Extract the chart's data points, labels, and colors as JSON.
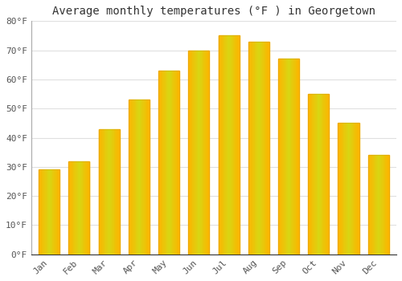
{
  "title": "Average monthly temperatures (°F ) in Georgetown",
  "months": [
    "Jan",
    "Feb",
    "Mar",
    "Apr",
    "May",
    "Jun",
    "Jul",
    "Aug",
    "Sep",
    "Oct",
    "Nov",
    "Dec"
  ],
  "values": [
    29,
    32,
    43,
    53,
    63,
    70,
    75,
    73,
    67,
    55,
    45,
    34
  ],
  "bar_color_center": "#FFD700",
  "bar_color_edge": "#FFA500",
  "bar_edge_color": "#C8A000",
  "background_color": "#FFFFFF",
  "plot_bg_color": "#FFFFFF",
  "grid_color": "#E0E0E0",
  "ylim": [
    0,
    80
  ],
  "yticks": [
    0,
    10,
    20,
    30,
    40,
    50,
    60,
    70,
    80
  ],
  "ytick_labels": [
    "0°F",
    "10°F",
    "20°F",
    "30°F",
    "40°F",
    "50°F",
    "60°F",
    "70°F",
    "80°F"
  ],
  "title_fontsize": 10,
  "tick_fontsize": 8,
  "font_family": "monospace",
  "bar_width": 0.7
}
